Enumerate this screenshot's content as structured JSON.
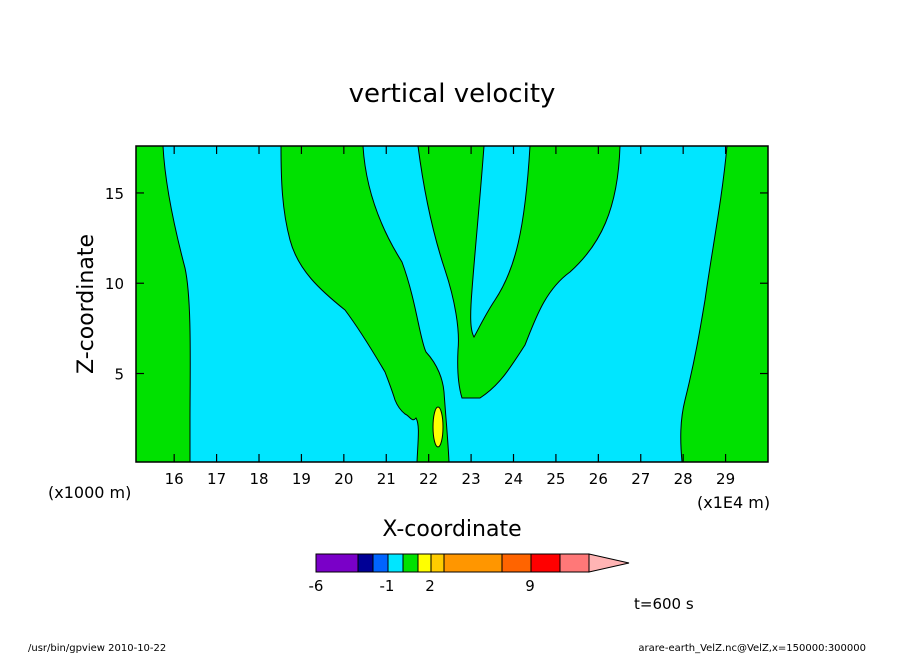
{
  "chart_data": {
    "type": "contour",
    "title": "vertical velocity",
    "xlabel": "X-coordinate",
    "ylabel": "Z-coordinate",
    "x_unit": "(x1E4 m)",
    "y_unit": "(x1000 m)",
    "x_ticks": [
      "16",
      "17",
      "18",
      "19",
      "20",
      "21",
      "22",
      "23",
      "24",
      "25",
      "26",
      "27",
      "28",
      "29"
    ],
    "y_ticks": [
      "5",
      "10",
      "15"
    ],
    "xlim": [
      15.1,
      30.0
    ],
    "ylim": [
      0.1,
      17.6
    ],
    "colorbar": {
      "ticks": [
        "-6",
        "-1",
        "2",
        "9"
      ],
      "colors": [
        "#7a00c8",
        "#000096",
        "#0064ff",
        "#00e6ff",
        "#00e100",
        "#ffff00",
        "#ffcc00",
        "#ff9600",
        "#ff6400",
        "#ff0000",
        "#ff7878",
        "#ffb4b4"
      ]
    },
    "dominant_levels": {
      "background_color": "#00e6ff",
      "positive_color": "#00e100",
      "max_color": "#ffff00"
    },
    "time_label": "t=600 s"
  },
  "footer": {
    "left": "/usr/bin/gpview   2010-10-22",
    "right": "arare-earth_VelZ.nc@VelZ,x=150000:300000"
  }
}
